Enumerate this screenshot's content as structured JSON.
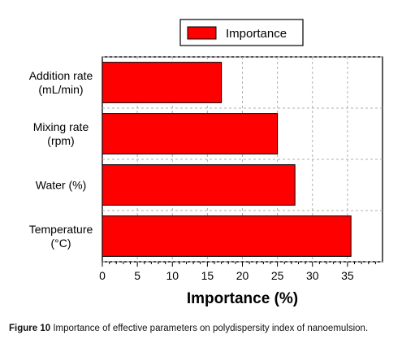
{
  "chart_data": {
    "type": "bar",
    "orientation": "horizontal",
    "categories": [
      [
        "Addition rate",
        "(mL/min)"
      ],
      [
        "Mixing rate",
        "(rpm)"
      ],
      [
        "Water (%)"
      ],
      [
        "Temperature",
        "(°C)"
      ]
    ],
    "series": [
      {
        "name": "Importance",
        "values": [
          17,
          25,
          27.5,
          35.5
        ]
      }
    ],
    "xlabel": "Importance (%)",
    "ylabel": "",
    "xlim": [
      0,
      40
    ],
    "xticks": [
      0,
      5,
      10,
      15,
      20,
      25,
      30,
      35
    ],
    "grid": "vertical dashed",
    "legend": "top-center",
    "colors": {
      "bar": "#ff0000",
      "bar_edge": "#000000",
      "grid": "#b0b0b0"
    }
  },
  "caption": {
    "label": "Figure 10",
    "text": "Importance of effective parameters on polydispersity index of nanoemulsion."
  }
}
